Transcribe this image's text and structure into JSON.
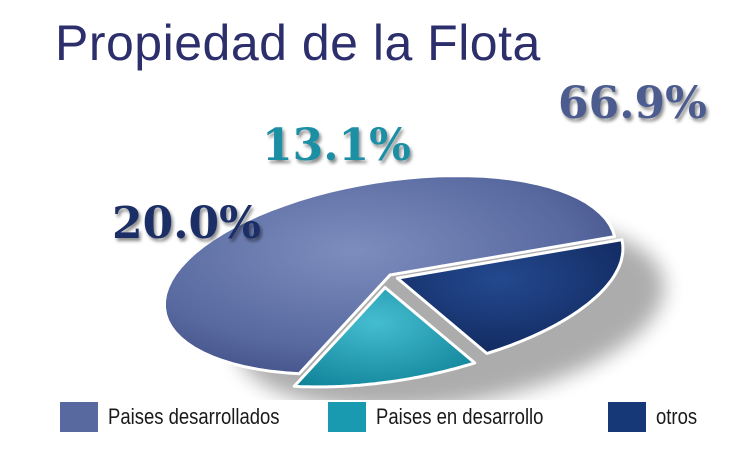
{
  "title": "Propiedad de la Flota",
  "chart_data": {
    "type": "pie",
    "slices": [
      {
        "name": "Paises desarrollados",
        "value": 66.9,
        "label": "66.9%",
        "color": "#5869a0"
      },
      {
        "name": "Paises en desarrollo",
        "value": 13.1,
        "label": "13.1%",
        "color": "#1a9ab0"
      },
      {
        "name": "otros",
        "value": 20.0,
        "label": "20.0%",
        "color": "#173877"
      }
    ],
    "legend": {
      "placement": "bottom",
      "show": true
    }
  }
}
